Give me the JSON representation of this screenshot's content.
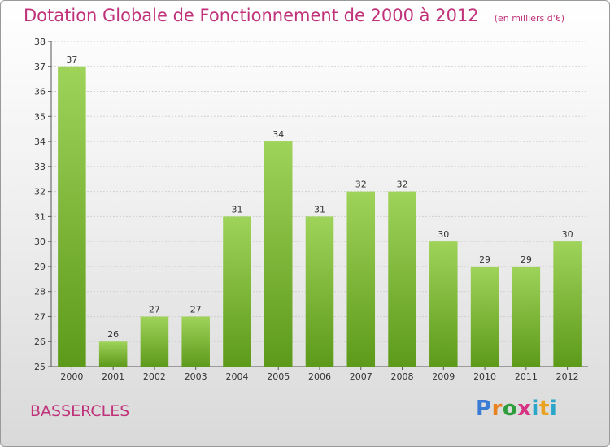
{
  "header": {
    "title": "Dotation Globale de Fonctionnement de 2000 à 2012",
    "subtitle": "(en milliers d'€)"
  },
  "footer": {
    "city": "BASSERCLES",
    "logo_text": "Proxiti"
  },
  "colors": {
    "title": "#c0337a",
    "bar_top": "#9fd35a",
    "bar_bottom": "#5d9a1a"
  },
  "chart_data": {
    "type": "bar",
    "title": "Dotation Globale de Fonctionnement de 2000 à 2012",
    "subtitle": "(en milliers d'€)",
    "xlabel": "",
    "ylabel": "",
    "categories": [
      "2000",
      "2001",
      "2002",
      "2003",
      "2004",
      "2005",
      "2006",
      "2007",
      "2008",
      "2009",
      "2010",
      "2011",
      "2012"
    ],
    "values": [
      37,
      26,
      27,
      27,
      31,
      34,
      31,
      32,
      32,
      30,
      29,
      29,
      30
    ],
    "ylim": [
      25,
      38
    ],
    "yticks": [
      25,
      26,
      27,
      28,
      29,
      30,
      31,
      32,
      33,
      34,
      35,
      36,
      37,
      38
    ],
    "grid": true,
    "data_labels": true
  }
}
